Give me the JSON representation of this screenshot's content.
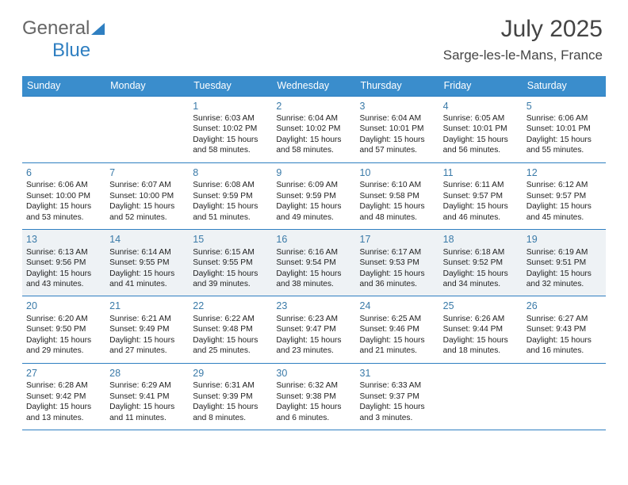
{
  "logo": {
    "part1": "General",
    "part2": "Blue"
  },
  "title": "July 2025",
  "location": "Sarge-les-le-Mans, France",
  "colors": {
    "header_bg": "#3a8dcc",
    "border": "#2f7fc1",
    "shade_bg": "#eef2f5",
    "daynum": "#3a7aa8",
    "logo_gray": "#666666",
    "logo_blue": "#2f7fc1"
  },
  "days_header": [
    "Sunday",
    "Monday",
    "Tuesday",
    "Wednesday",
    "Thursday",
    "Friday",
    "Saturday"
  ],
  "weeks": [
    {
      "shaded": false,
      "cells": [
        {
          "n": "",
          "lines": []
        },
        {
          "n": "",
          "lines": []
        },
        {
          "n": "1",
          "lines": [
            "Sunrise: 6:03 AM",
            "Sunset: 10:02 PM",
            "Daylight: 15 hours and 58 minutes."
          ]
        },
        {
          "n": "2",
          "lines": [
            "Sunrise: 6:04 AM",
            "Sunset: 10:02 PM",
            "Daylight: 15 hours and 58 minutes."
          ]
        },
        {
          "n": "3",
          "lines": [
            "Sunrise: 6:04 AM",
            "Sunset: 10:01 PM",
            "Daylight: 15 hours and 57 minutes."
          ]
        },
        {
          "n": "4",
          "lines": [
            "Sunrise: 6:05 AM",
            "Sunset: 10:01 PM",
            "Daylight: 15 hours and 56 minutes."
          ]
        },
        {
          "n": "5",
          "lines": [
            "Sunrise: 6:06 AM",
            "Sunset: 10:01 PM",
            "Daylight: 15 hours and 55 minutes."
          ]
        }
      ]
    },
    {
      "shaded": false,
      "cells": [
        {
          "n": "6",
          "lines": [
            "Sunrise: 6:06 AM",
            "Sunset: 10:00 PM",
            "Daylight: 15 hours and 53 minutes."
          ]
        },
        {
          "n": "7",
          "lines": [
            "Sunrise: 6:07 AM",
            "Sunset: 10:00 PM",
            "Daylight: 15 hours and 52 minutes."
          ]
        },
        {
          "n": "8",
          "lines": [
            "Sunrise: 6:08 AM",
            "Sunset: 9:59 PM",
            "Daylight: 15 hours and 51 minutes."
          ]
        },
        {
          "n": "9",
          "lines": [
            "Sunrise: 6:09 AM",
            "Sunset: 9:59 PM",
            "Daylight: 15 hours and 49 minutes."
          ]
        },
        {
          "n": "10",
          "lines": [
            "Sunrise: 6:10 AM",
            "Sunset: 9:58 PM",
            "Daylight: 15 hours and 48 minutes."
          ]
        },
        {
          "n": "11",
          "lines": [
            "Sunrise: 6:11 AM",
            "Sunset: 9:57 PM",
            "Daylight: 15 hours and 46 minutes."
          ]
        },
        {
          "n": "12",
          "lines": [
            "Sunrise: 6:12 AM",
            "Sunset: 9:57 PM",
            "Daylight: 15 hours and 45 minutes."
          ]
        }
      ]
    },
    {
      "shaded": true,
      "cells": [
        {
          "n": "13",
          "lines": [
            "Sunrise: 6:13 AM",
            "Sunset: 9:56 PM",
            "Daylight: 15 hours and 43 minutes."
          ]
        },
        {
          "n": "14",
          "lines": [
            "Sunrise: 6:14 AM",
            "Sunset: 9:55 PM",
            "Daylight: 15 hours and 41 minutes."
          ]
        },
        {
          "n": "15",
          "lines": [
            "Sunrise: 6:15 AM",
            "Sunset: 9:55 PM",
            "Daylight: 15 hours and 39 minutes."
          ]
        },
        {
          "n": "16",
          "lines": [
            "Sunrise: 6:16 AM",
            "Sunset: 9:54 PM",
            "Daylight: 15 hours and 38 minutes."
          ]
        },
        {
          "n": "17",
          "lines": [
            "Sunrise: 6:17 AM",
            "Sunset: 9:53 PM",
            "Daylight: 15 hours and 36 minutes."
          ]
        },
        {
          "n": "18",
          "lines": [
            "Sunrise: 6:18 AM",
            "Sunset: 9:52 PM",
            "Daylight: 15 hours and 34 minutes."
          ]
        },
        {
          "n": "19",
          "lines": [
            "Sunrise: 6:19 AM",
            "Sunset: 9:51 PM",
            "Daylight: 15 hours and 32 minutes."
          ]
        }
      ]
    },
    {
      "shaded": false,
      "cells": [
        {
          "n": "20",
          "lines": [
            "Sunrise: 6:20 AM",
            "Sunset: 9:50 PM",
            "Daylight: 15 hours and 29 minutes."
          ]
        },
        {
          "n": "21",
          "lines": [
            "Sunrise: 6:21 AM",
            "Sunset: 9:49 PM",
            "Daylight: 15 hours and 27 minutes."
          ]
        },
        {
          "n": "22",
          "lines": [
            "Sunrise: 6:22 AM",
            "Sunset: 9:48 PM",
            "Daylight: 15 hours and 25 minutes."
          ]
        },
        {
          "n": "23",
          "lines": [
            "Sunrise: 6:23 AM",
            "Sunset: 9:47 PM",
            "Daylight: 15 hours and 23 minutes."
          ]
        },
        {
          "n": "24",
          "lines": [
            "Sunrise: 6:25 AM",
            "Sunset: 9:46 PM",
            "Daylight: 15 hours and 21 minutes."
          ]
        },
        {
          "n": "25",
          "lines": [
            "Sunrise: 6:26 AM",
            "Sunset: 9:44 PM",
            "Daylight: 15 hours and 18 minutes."
          ]
        },
        {
          "n": "26",
          "lines": [
            "Sunrise: 6:27 AM",
            "Sunset: 9:43 PM",
            "Daylight: 15 hours and 16 minutes."
          ]
        }
      ]
    },
    {
      "shaded": false,
      "cells": [
        {
          "n": "27",
          "lines": [
            "Sunrise: 6:28 AM",
            "Sunset: 9:42 PM",
            "Daylight: 15 hours and 13 minutes."
          ]
        },
        {
          "n": "28",
          "lines": [
            "Sunrise: 6:29 AM",
            "Sunset: 9:41 PM",
            "Daylight: 15 hours and 11 minutes."
          ]
        },
        {
          "n": "29",
          "lines": [
            "Sunrise: 6:31 AM",
            "Sunset: 9:39 PM",
            "Daylight: 15 hours and 8 minutes."
          ]
        },
        {
          "n": "30",
          "lines": [
            "Sunrise: 6:32 AM",
            "Sunset: 9:38 PM",
            "Daylight: 15 hours and 6 minutes."
          ]
        },
        {
          "n": "31",
          "lines": [
            "Sunrise: 6:33 AM",
            "Sunset: 9:37 PM",
            "Daylight: 15 hours and 3 minutes."
          ]
        },
        {
          "n": "",
          "lines": []
        },
        {
          "n": "",
          "lines": []
        }
      ]
    }
  ]
}
